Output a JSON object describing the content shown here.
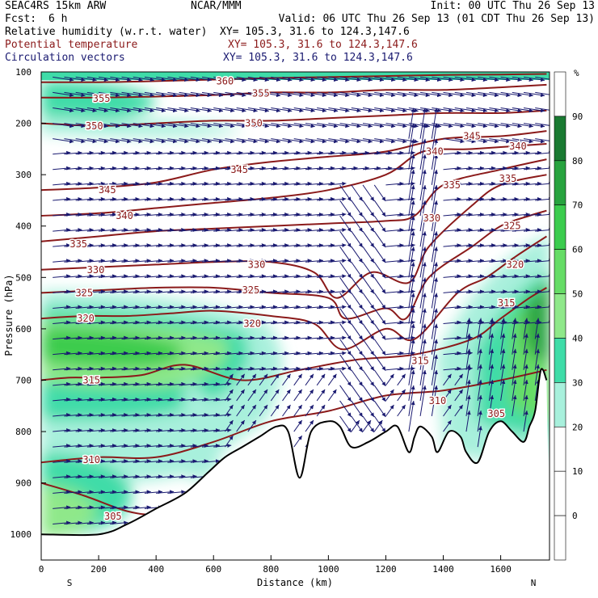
{
  "header": {
    "model": "SEAC4RS 15km ARW",
    "fcst_label": "Fcst:",
    "fcst_value": "6 h",
    "center": "NCAR/MMM",
    "init": "Init: 00 UTC Thu 26 Sep 13",
    "valid": "Valid: 06 UTC Thu 26 Sep 13 (01 CDT Thu 26 Sep 13)",
    "fields": [
      {
        "name": "Relative humidity (w.r.t. water)",
        "xy": "XY= 105.3, 31.6 to 124.3,147.6",
        "color": "#000000"
      },
      {
        "name": "Potential temperature",
        "xy": "XY= 105.3, 31.6 to 124.3,147.6",
        "color": "#8b1a1a"
      },
      {
        "name": "Circulation vectors",
        "xy": "XY= 105.3, 31.6 to 124.3,147.6",
        "color": "#191970"
      }
    ]
  },
  "chart_data": {
    "type": "cross-section",
    "xlabel": "Distance (km)",
    "ylabel": "Pressure (hPa)",
    "xlim": [
      0,
      1770
    ],
    "ylim": [
      1050,
      100
    ],
    "x_ticks": [
      "0",
      "200",
      "400",
      "600",
      "800",
      "1000",
      "1200",
      "1400",
      "1600"
    ],
    "y_ticks": [
      "100",
      "200",
      "300",
      "400",
      "500",
      "600",
      "700",
      "800",
      "900",
      "1000"
    ],
    "x_end_labels": {
      "left": "S",
      "right": "N"
    },
    "colorbar": {
      "unit": "%",
      "ticks": [
        "90",
        "80",
        "70",
        "60",
        "50",
        "40",
        "30",
        "20",
        "10",
        "0"
      ],
      "bands": [
        {
          "range": [
            95,
            100
          ],
          "color": "#ffffff"
        },
        {
          "range": [
            90,
            95
          ],
          "color": "#1a7a32"
        },
        {
          "range": [
            80,
            90
          ],
          "color": "#28a33f"
        },
        {
          "range": [
            70,
            80
          ],
          "color": "#3ccc4e"
        },
        {
          "range": [
            60,
            70
          ],
          "color": "#66dc66"
        },
        {
          "range": [
            50,
            60
          ],
          "color": "#8fe88a"
        },
        {
          "range": [
            40,
            50
          ],
          "color": "#3fdca8"
        },
        {
          "range": [
            30,
            40
          ],
          "color": "#a8f0dc"
        },
        {
          "range": [
            20,
            30
          ],
          "color": "#ffffff"
        },
        {
          "range": [
            10,
            20
          ],
          "color": "#ffffff"
        },
        {
          "range": [
            0,
            10
          ],
          "color": "#ffffff"
        }
      ]
    },
    "colors": {
      "theta": "#8b1a1a",
      "vectors": "#191970",
      "terrain": "#000000"
    },
    "terrain": {
      "x": [
        0,
        200,
        300,
        400,
        500,
        580,
        640,
        700,
        760,
        820,
        860,
        900,
        940,
        1000,
        1040,
        1080,
        1140,
        1200,
        1240,
        1280,
        1300,
        1320,
        1360,
        1380,
        1420,
        1460,
        1480,
        1520,
        1560,
        1600,
        1640,
        1680,
        1700,
        1720,
        1740,
        1760
      ],
      "p": [
        1000,
        1000,
        980,
        950,
        920,
        880,
        850,
        830,
        810,
        790,
        800,
        890,
        800,
        780,
        790,
        830,
        820,
        800,
        790,
        840,
        810,
        790,
        810,
        840,
        800,
        810,
        840,
        860,
        800,
        780,
        800,
        820,
        790,
        760,
        680,
        700
      ]
    },
    "theta": [
      {
        "value": 305,
        "x": [
          0,
          150,
          300,
          400,
          500,
          600
        ],
        "p": [
          900,
          925,
          955,
          960,
          940,
          880
        ]
      },
      {
        "value": 310,
        "x": [
          0,
          200,
          400,
          600,
          800,
          1000,
          1200,
          1400,
          1600,
          1760
        ],
        "p": [
          860,
          850,
          850,
          820,
          780,
          760,
          730,
          720,
          700,
          680
        ]
      },
      {
        "value": 315,
        "x": [
          0,
          100,
          200,
          350,
          500,
          700,
          900,
          1100,
          1300,
          1500,
          1600,
          1700,
          1760
        ],
        "p": [
          700,
          695,
          695,
          690,
          670,
          700,
          680,
          660,
          650,
          620,
          580,
          540,
          520
        ]
      },
      {
        "value": 320,
        "x": [
          0,
          150,
          300,
          450,
          600,
          800,
          950,
          1050,
          1200,
          1300,
          1450,
          1550,
          1650,
          1760
        ],
        "p": [
          580,
          575,
          575,
          570,
          565,
          575,
          590,
          640,
          600,
          620,
          530,
          500,
          460,
          420
        ]
      },
      {
        "value": 325,
        "x": [
          0,
          200,
          400,
          600,
          800,
          1000,
          1060,
          1200,
          1270,
          1350,
          1500,
          1600,
          1700,
          1760
        ],
        "p": [
          530,
          525,
          520,
          520,
          530,
          540,
          580,
          560,
          580,
          500,
          440,
          400,
          380,
          370
        ]
      },
      {
        "value": 330,
        "x": [
          0,
          200,
          400,
          600,
          800,
          950,
          1030,
          1150,
          1280,
          1350,
          1500,
          1600,
          1760
        ],
        "p": [
          485,
          480,
          475,
          470,
          470,
          490,
          540,
          490,
          510,
          440,
          360,
          320,
          300
        ]
      },
      {
        "value": 335,
        "x": [
          0,
          200,
          400,
          600,
          800,
          1000,
          1200,
          1300,
          1400,
          1600,
          1760
        ],
        "p": [
          430,
          420,
          410,
          405,
          400,
          395,
          390,
          380,
          320,
          290,
          270
        ]
      },
      {
        "value": 340,
        "x": [
          0,
          200,
          400,
          600,
          800,
          1000,
          1200,
          1330,
          1500,
          1760
        ],
        "p": [
          380,
          375,
          365,
          355,
          345,
          330,
          300,
          255,
          250,
          240
        ]
      },
      {
        "value": 345,
        "x": [
          0,
          200,
          400,
          600,
          800,
          1000,
          1200,
          1400,
          1600,
          1760
        ],
        "p": [
          330,
          325,
          315,
          290,
          275,
          265,
          255,
          230,
          225,
          215
        ]
      },
      {
        "value": 350,
        "x": [
          0,
          200,
          400,
          600,
          800,
          1000,
          1200,
          1400,
          1600,
          1760
        ],
        "p": [
          200,
          205,
          200,
          195,
          195,
          190,
          185,
          180,
          180,
          175
        ]
      },
      {
        "value": 355,
        "x": [
          0,
          200,
          400,
          600,
          800,
          1000,
          1200,
          1400,
          1600,
          1760
        ],
        "p": [
          150,
          150,
          148,
          145,
          140,
          140,
          135,
          135,
          130,
          125
        ]
      },
      {
        "value": 360,
        "x": [
          0,
          200,
          400,
          600,
          800,
          1000,
          1200,
          1400,
          1600,
          1760
        ],
        "p": [
          120,
          120,
          118,
          115,
          112,
          110,
          108,
          106,
          105,
          104
        ]
      }
    ],
    "theta_labels": [
      {
        "text": "305",
        "x": 250,
        "p": 965
      },
      {
        "text": "310",
        "x": 175,
        "p": 855
      },
      {
        "text": "315",
        "x": 175,
        "p": 700
      },
      {
        "text": "315",
        "x": 1320,
        "p": 662
      },
      {
        "text": "315",
        "x": 1620,
        "p": 550
      },
      {
        "text": "310",
        "x": 1380,
        "p": 740
      },
      {
        "text": "305",
        "x": 1585,
        "p": 765
      },
      {
        "text": "320",
        "x": 155,
        "p": 580
      },
      {
        "text": "320",
        "x": 735,
        "p": 590
      },
      {
        "text": "320",
        "x": 1650,
        "p": 475
      },
      {
        "text": "325",
        "x": 150,
        "p": 530
      },
      {
        "text": "325",
        "x": 730,
        "p": 525
      },
      {
        "text": "325",
        "x": 1640,
        "p": 400
      },
      {
        "text": "330",
        "x": 190,
        "p": 485
      },
      {
        "text": "330",
        "x": 750,
        "p": 475
      },
      {
        "text": "330",
        "x": 1360,
        "p": 385
      },
      {
        "text": "335",
        "x": 130,
        "p": 435
      },
      {
        "text": "335",
        "x": 1430,
        "p": 320
      },
      {
        "text": "335",
        "x": 1625,
        "p": 308
      },
      {
        "text": "340",
        "x": 290,
        "p": 380
      },
      {
        "text": "340",
        "x": 1370,
        "p": 255
      },
      {
        "text": "340",
        "x": 1660,
        "p": 245
      },
      {
        "text": "345",
        "x": 230,
        "p": 330
      },
      {
        "text": "345",
        "x": 690,
        "p": 290
      },
      {
        "text": "345",
        "x": 1500,
        "p": 225
      },
      {
        "text": "350",
        "x": 185,
        "p": 205
      },
      {
        "text": "350",
        "x": 740,
        "p": 200
      },
      {
        "text": "355",
        "x": 210,
        "p": 152
      },
      {
        "text": "355",
        "x": 765,
        "p": 142
      },
      {
        "text": "360",
        "x": 640,
        "p": 118
      }
    ]
  }
}
